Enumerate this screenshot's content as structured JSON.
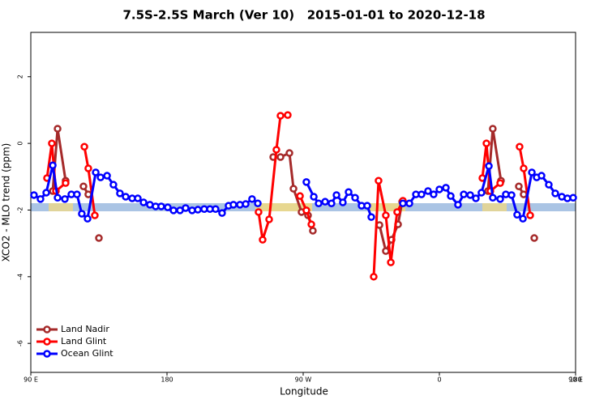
{
  "chart_data": {
    "type": "line",
    "title": "7.5S-2.5S March (Ver 10)   2015-01-01 to 2020-12-18",
    "x_label": "Longitude",
    "y_label": "XCO2 - MLO trend (ppm)",
    "xlim": [
      90,
      450
    ],
    "xticks": [
      {
        "value": 90,
        "label": "90 E"
      },
      {
        "value": 180,
        "label": "180"
      },
      {
        "value": 270,
        "label": "90 W"
      },
      {
        "value": 360,
        "label": "0"
      },
      {
        "value": 450,
        "label": "90 E"
      },
      {
        "value": 540,
        "label": "180"
      }
    ],
    "ylim": [
      -6.87,
      3.33
    ],
    "yticks": [
      2,
      0,
      -2,
      -4,
      -6
    ],
    "legend": "bottom-left",
    "series": [
      {
        "name": "Land Nadir",
        "color": "#a52a2a",
        "x": [
          104.5,
          107.7,
          113.0,
          null,
          124.8,
          128.0,
          null,
          135.0,
          null,
          250.2,
          255.0,
          260.9,
          263.6,
          268.9,
          273.2,
          276.4,
          null,
          320.4,
          324.6,
          328.4,
          332.7,
          335.4,
          null,
          392.1,
          395.3,
          400.7,
          null,
          412.5,
          415.7,
          null,
          422.7
        ],
        "values": [
          -1.43,
          0.44,
          -1.12,
          null,
          -1.29,
          -1.53,
          null,
          -2.84,
          null,
          -0.41,
          -0.41,
          -0.29,
          -1.36,
          -2.06,
          -2.16,
          -2.62,
          null,
          -2.45,
          -3.23,
          -2.89,
          -2.43,
          -1.75,
          null,
          -1.43,
          0.44,
          -1.12,
          null,
          -1.29,
          -1.53,
          null,
          -2.84
        ]
      },
      {
        "name": "Land Glint",
        "color": "#ff0000",
        "x": [
          100.7,
          103.9,
          106.6,
          113.0,
          null,
          125.4,
          128.0,
          132.3,
          null,
          240.5,
          243.2,
          247.5,
          252.3,
          255.0,
          259.8,
          null,
          267.9,
          272.1,
          275.4,
          null,
          316.6,
          319.8,
          324.6,
          327.9,
          332.1,
          335.9,
          null,
          388.4,
          391.1,
          393.7,
          400.2,
          null,
          413.0,
          415.7,
          420.0
        ],
        "values": [
          -1.04,
          0,
          -1.43,
          -1.19,
          null,
          -0.1,
          -0.75,
          -2.16,
          null,
          -2.06,
          -2.89,
          -2.28,
          -0.19,
          0.83,
          0.85,
          null,
          -1.58,
          -2.01,
          -2.43,
          null,
          -4.0,
          -1.12,
          -2.16,
          -3.57,
          -2.06,
          -1.72,
          null,
          -1.04,
          0,
          -1.43,
          -1.19,
          null,
          -0.1,
          -0.75,
          -2.16
        ]
      },
      {
        "name": "Ocean Glint",
        "color": "#0000ff",
        "x": [
          92.1,
          96.4,
          100.2,
          104.5,
          107.7,
          112.5,
          116.8,
          120.5,
          123.7,
          127.5,
          132.9,
          136.1,
          140.4,
          144.6,
          148.9,
          152.7,
          157.0,
          160.7,
          164.5,
          168.7,
          172.5,
          176.2,
          180.5,
          184.3,
          188.6,
          192.3,
          196.6,
          200.4,
          204.6,
          208.4,
          212.1,
          216.4,
          220.7,
          223.9,
          228.2,
          232.0,
          236.2,
          240.0,
          null,
          272.1,
          277.0,
          280.2,
          284.5,
          288.7,
          292.0,
          296.2,
          300.0,
          304.3,
          308.6,
          312.3,
          315.0,
          null,
          335.9,
          340.2,
          344.5,
          348.2,
          352.5,
          356.2,
          360.0,
          364.3,
          367.5,
          372.3,
          376.1,
          380.4,
          384.1,
          387.8,
          392.7,
          395.3,
          400.2,
          403.9,
          407.7,
          411.4,
          415.2,
          421.1,
          424.3,
          427.5,
          432.3,
          436.6,
          440.9,
          444.6,
          448.4
        ],
        "values": [
          -1.55,
          -1.67,
          -1.48,
          -0.66,
          -1.63,
          -1.67,
          -1.53,
          -1.53,
          -2.11,
          -2.26,
          -0.87,
          -1.02,
          -0.97,
          -1.24,
          -1.5,
          -1.6,
          -1.65,
          -1.65,
          -1.77,
          -1.84,
          -1.89,
          -1.89,
          -1.92,
          -2.01,
          -2.01,
          -1.94,
          -2.01,
          -1.99,
          -1.97,
          -1.97,
          -1.97,
          -2.09,
          -1.87,
          -1.84,
          -1.84,
          -1.82,
          -1.67,
          -1.8,
          null,
          -1.16,
          -1.6,
          -1.8,
          -1.75,
          -1.8,
          -1.55,
          -1.77,
          -1.46,
          -1.63,
          -1.87,
          -1.87,
          -2.21,
          null,
          -1.8,
          -1.8,
          -1.53,
          -1.53,
          -1.43,
          -1.53,
          -1.38,
          -1.33,
          -1.58,
          -1.84,
          -1.53,
          -1.55,
          -1.65,
          -1.48,
          -0.68,
          -1.63,
          -1.67,
          -1.53,
          -1.55,
          -2.14,
          -2.26,
          -0.87,
          -1.02,
          -0.97,
          -1.24,
          -1.5,
          -1.6,
          -1.65,
          -1.63
        ]
      }
    ]
  }
}
